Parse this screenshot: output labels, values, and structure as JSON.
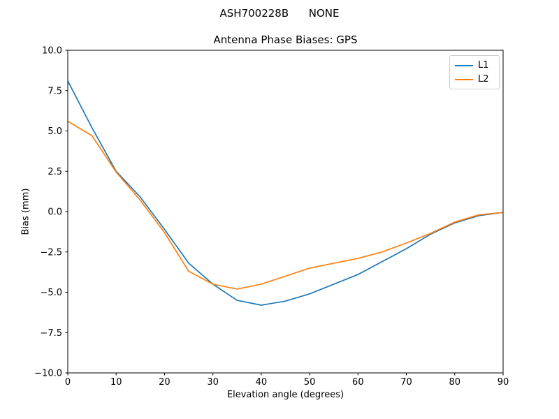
{
  "figure": {
    "suptitle": "ASH700228B      NONE",
    "background": "#ffffff",
    "text_color": "#000000"
  },
  "chart_data": {
    "type": "line",
    "suptitle": "ASH700228B      NONE",
    "title": "Antenna Phase Biases: GPS",
    "xlabel": "Elevation angle (degrees)",
    "ylabel": "Bias (mm)",
    "xlim": [
      0,
      90
    ],
    "ylim": [
      -10,
      10
    ],
    "x_ticks": [
      0,
      10,
      20,
      30,
      40,
      50,
      60,
      70,
      80,
      90
    ],
    "y_ticks": [
      10.0,
      7.5,
      5.0,
      2.5,
      0.0,
      -2.5,
      -5.0,
      -7.5,
      -10.0
    ],
    "grid": false,
    "legend_position": "upper right",
    "axis_color": "#000000",
    "x": [
      0,
      5,
      10,
      15,
      20,
      25,
      30,
      35,
      40,
      45,
      50,
      55,
      60,
      65,
      70,
      75,
      80,
      85,
      90
    ],
    "series": [
      {
        "name": "L1",
        "color": "#1f77b4",
        "values": [
          8.1,
          5.2,
          2.5,
          0.9,
          -1.1,
          -3.2,
          -4.5,
          -5.5,
          -5.8,
          -5.55,
          -5.1,
          -4.5,
          -3.9,
          -3.1,
          -2.3,
          -1.4,
          -0.7,
          -0.25,
          -0.05
        ]
      },
      {
        "name": "L2",
        "color": "#ff7f0e",
        "values": [
          5.6,
          4.7,
          2.45,
          0.7,
          -1.3,
          -3.7,
          -4.5,
          -4.8,
          -4.5,
          -4.0,
          -3.5,
          -3.2,
          -2.9,
          -2.5,
          -1.95,
          -1.35,
          -0.65,
          -0.2,
          -0.05
        ]
      }
    ]
  }
}
